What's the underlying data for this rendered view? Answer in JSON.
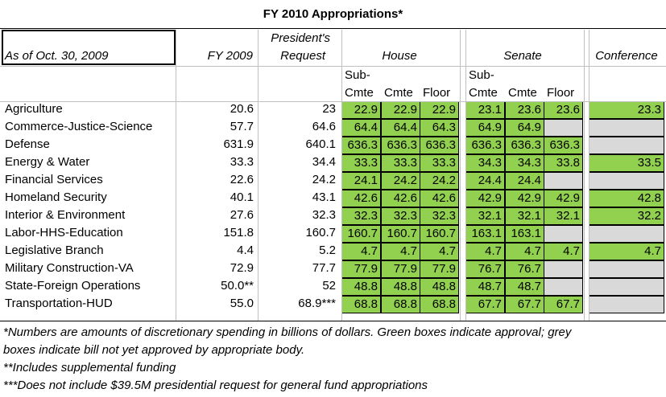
{
  "title": "FY 2010 Appropriations*",
  "headers": {
    "as_of": "As of Oct. 30, 2009",
    "fy2009": "FY 2009",
    "presidents_1": "President's",
    "presidents_2": "Request",
    "house": "House",
    "senate": "Senate",
    "conference": "Conference",
    "sub1": "Sub-",
    "sub2": "Cmte",
    "cmte": "Cmte",
    "floor": "Floor"
  },
  "rows": [
    {
      "name": "Agriculture",
      "fy2009": "20.6",
      "request": "23",
      "house": [
        "22.9",
        "22.9",
        "22.9"
      ],
      "senate": [
        "23.1",
        "23.6",
        "23.6"
      ],
      "conference": "23.3"
    },
    {
      "name": "Commerce-Justice-Science",
      "fy2009": "57.7",
      "request": "64.6",
      "house": [
        "64.4",
        "64.4",
        "64.3"
      ],
      "senate": [
        "64.9",
        "64.9",
        ""
      ],
      "conference": ""
    },
    {
      "name": "Defense",
      "fy2009": "631.9",
      "request": "640.1",
      "house": [
        "636.3",
        "636.3",
        "636.3"
      ],
      "senate": [
        "636.3",
        "636.3",
        "636.3"
      ],
      "conference": ""
    },
    {
      "name": "Energy & Water",
      "fy2009": "33.3",
      "request": "34.4",
      "house": [
        "33.3",
        "33.3",
        "33.3"
      ],
      "senate": [
        "34.3",
        "34.3",
        "33.8"
      ],
      "conference": "33.5"
    },
    {
      "name": "Financial Services",
      "fy2009": "22.6",
      "request": "24.2",
      "house": [
        "24.1",
        "24.2",
        "24.2"
      ],
      "senate": [
        "24.4",
        "24.4",
        ""
      ],
      "conference": ""
    },
    {
      "name": "Homeland Security",
      "fy2009": "40.1",
      "request": "43.1",
      "house": [
        "42.6",
        "42.6",
        "42.6"
      ],
      "senate": [
        "42.9",
        "42.9",
        "42.9"
      ],
      "conference": "42.8"
    },
    {
      "name": "Interior & Environment",
      "fy2009": "27.6",
      "request": "32.3",
      "house": [
        "32.3",
        "32.3",
        "32.3"
      ],
      "senate": [
        "32.1",
        "32.1",
        "32.1"
      ],
      "conference": "32.2"
    },
    {
      "name": "Labor-HHS-Education",
      "fy2009": "151.8",
      "request": "160.7",
      "house": [
        "160.7",
        "160.7",
        "160.7"
      ],
      "senate": [
        "163.1",
        "163.1",
        ""
      ],
      "conference": ""
    },
    {
      "name": "Legislative Branch",
      "fy2009": "4.4",
      "request": "5.2",
      "house": [
        "4.7",
        "4.7",
        "4.7"
      ],
      "senate": [
        "4.7",
        "4.7",
        "4.7"
      ],
      "conference": "4.7"
    },
    {
      "name": "Military Construction-VA",
      "fy2009": "72.9",
      "request": "77.7",
      "house": [
        "77.9",
        "77.9",
        "77.9"
      ],
      "senate": [
        "76.7",
        "76.7",
        ""
      ],
      "conference": ""
    },
    {
      "name": "State-Foreign Operations",
      "fy2009": "50.0**",
      "request": "52",
      "house": [
        "48.8",
        "48.8",
        "48.8"
      ],
      "senate": [
        "48.7",
        "48.7",
        ""
      ],
      "conference": ""
    },
    {
      "name": "Transportation-HUD",
      "fy2009": "55.0",
      "request": "68.9***",
      "house": [
        "68.8",
        "68.8",
        "68.8"
      ],
      "senate": [
        "67.7",
        "67.7",
        "67.7"
      ],
      "conference": ""
    }
  ],
  "footnotes": {
    "line1": "*Numbers are amounts of discretionary spending in billions of dollars. Green boxes indicate approval; grey",
    "line2": "boxes indicate bill not yet approved by appropriate body.",
    "line3": "**Includes supplemental funding",
    "line4": "***Does not include $39.5M presidential request for general fund appropriations"
  },
  "colors": {
    "approved": "#92d050",
    "pending": "#d9d9d9"
  }
}
